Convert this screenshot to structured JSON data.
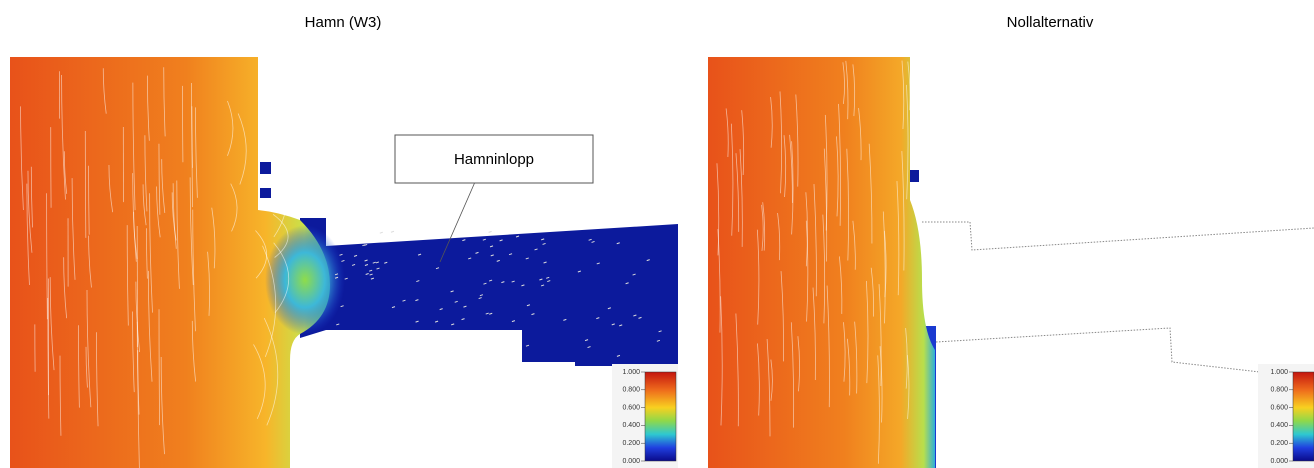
{
  "panels": [
    {
      "title": "Hamn (W3)",
      "annotation": "Hamninlopp",
      "colorbar": {
        "ticks": [
          {
            "value": 1,
            "label": "1.000"
          },
          {
            "value": 0.8,
            "label": "0.800"
          },
          {
            "value": 0.6,
            "label": "0.600"
          },
          {
            "value": 0.4,
            "label": "0.400"
          },
          {
            "value": 0.2,
            "label": "0.200"
          },
          {
            "value": 0,
            "label": "0.000"
          }
        ]
      }
    },
    {
      "title": "Nollalternativ",
      "colorbar": {
        "ticks": [
          {
            "value": 1,
            "label": "1.000"
          },
          {
            "value": 0.8,
            "label": "0.800"
          },
          {
            "value": 0.6,
            "label": "0.600"
          },
          {
            "value": 0.4,
            "label": "0.400"
          },
          {
            "value": 0.2,
            "label": "0.200"
          },
          {
            "value": 0,
            "label": "0.000"
          }
        ]
      }
    }
  ]
}
